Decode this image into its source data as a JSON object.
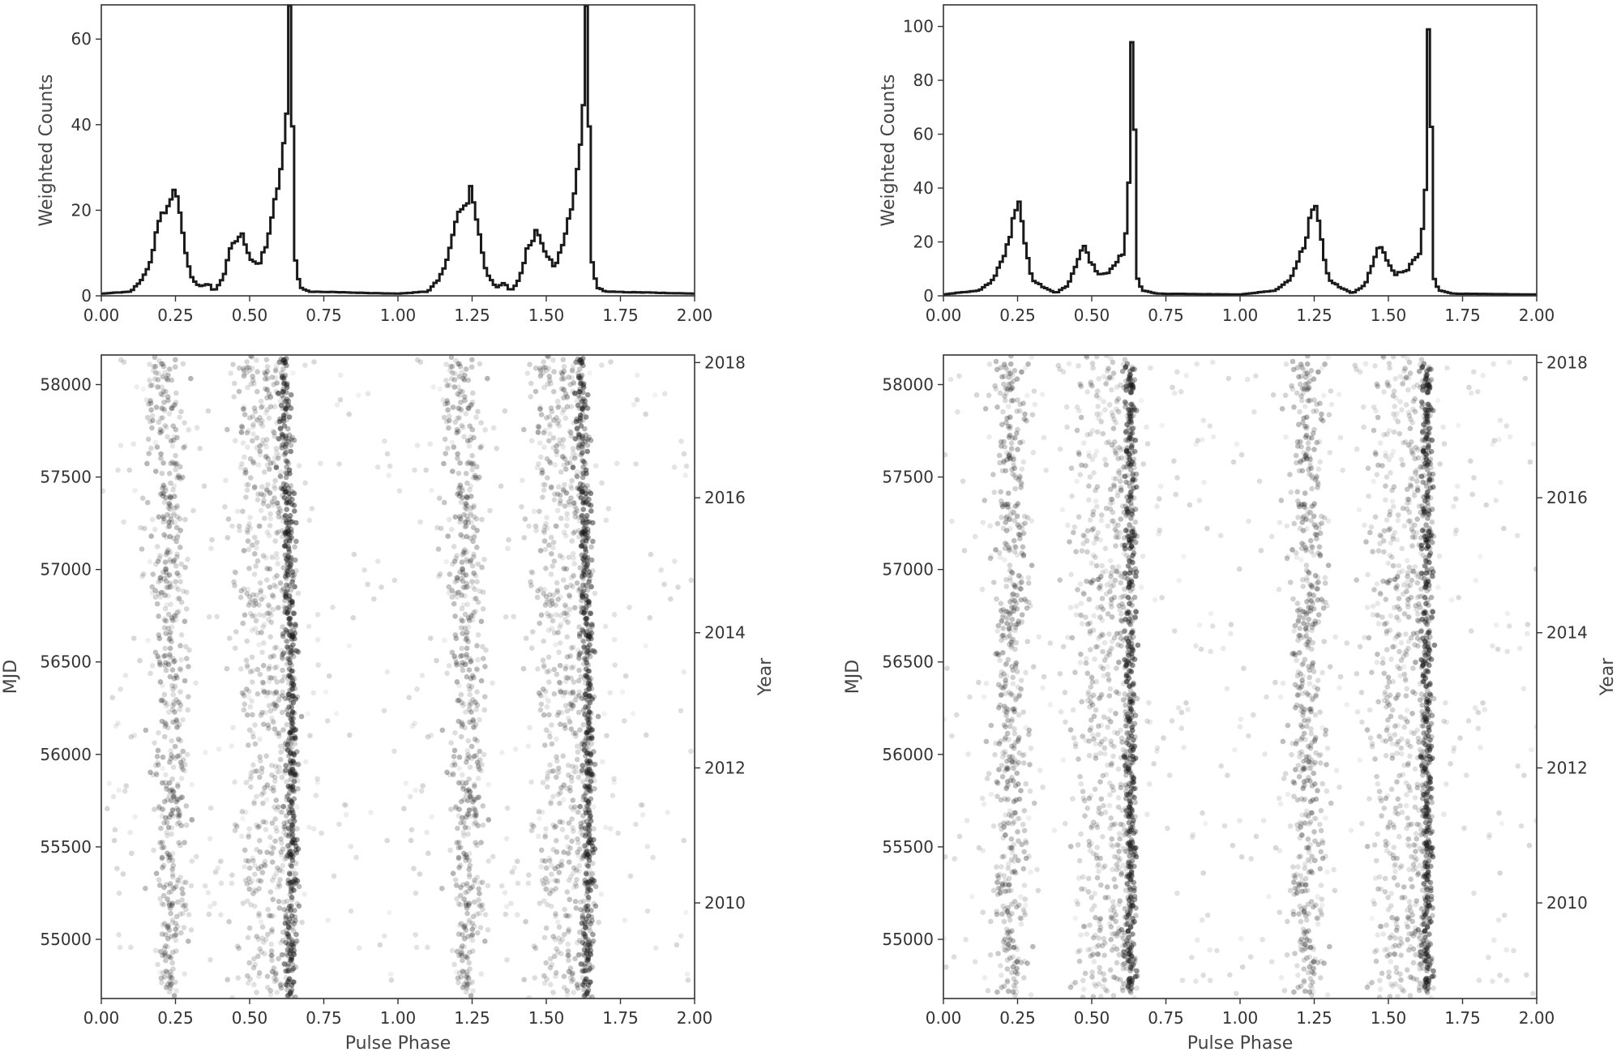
{
  "chart_data": [
    {
      "panel": "left-profile",
      "type": "line",
      "step": true,
      "ylabel": "Weighted Counts",
      "xlabel": "",
      "xlim": [
        0,
        2
      ],
      "ylim": [
        0,
        68
      ],
      "x_ticks": [
        "0.00",
        "0.25",
        "0.50",
        "0.75",
        "1.00",
        "1.25",
        "1.50",
        "1.75",
        "2.00"
      ],
      "y_ticks": [
        0,
        20,
        40,
        60
      ],
      "profile_keypoints": [
        [
          0.0,
          0.5
        ],
        [
          0.1,
          1
        ],
        [
          0.14,
          4
        ],
        [
          0.17,
          9
        ],
        [
          0.19,
          17
        ],
        [
          0.21,
          20
        ],
        [
          0.23,
          21
        ],
        [
          0.245,
          25
        ],
        [
          0.26,
          21
        ],
        [
          0.28,
          12
        ],
        [
          0.3,
          5
        ],
        [
          0.33,
          2
        ],
        [
          0.36,
          3
        ],
        [
          0.38,
          1
        ],
        [
          0.41,
          4
        ],
        [
          0.44,
          12
        ],
        [
          0.47,
          15
        ],
        [
          0.5,
          9
        ],
        [
          0.53,
          7
        ],
        [
          0.56,
          13
        ],
        [
          0.59,
          23
        ],
        [
          0.61,
          32
        ],
        [
          0.625,
          45
        ],
        [
          0.635,
          66
        ],
        [
          0.645,
          40
        ],
        [
          0.655,
          8
        ],
        [
          0.67,
          2
        ],
        [
          0.7,
          1
        ],
        [
          1.0,
          0.5
        ]
      ],
      "line_color": "#1a1a1a"
    },
    {
      "panel": "right-profile",
      "type": "line",
      "step": true,
      "ylabel": "Weighted Counts",
      "xlabel": "",
      "xlim": [
        0,
        2
      ],
      "ylim": [
        0,
        108
      ],
      "x_ticks": [
        "0.00",
        "0.25",
        "0.50",
        "0.75",
        "1.00",
        "1.25",
        "1.50",
        "1.75",
        "2.00"
      ],
      "y_ticks": [
        0,
        20,
        40,
        60,
        80,
        100
      ],
      "profile_keypoints": [
        [
          0.0,
          0.5
        ],
        [
          0.12,
          2
        ],
        [
          0.17,
          6
        ],
        [
          0.2,
          14
        ],
        [
          0.22,
          20
        ],
        [
          0.24,
          30
        ],
        [
          0.25,
          36
        ],
        [
          0.26,
          33
        ],
        [
          0.28,
          16
        ],
        [
          0.3,
          6
        ],
        [
          0.34,
          3
        ],
        [
          0.38,
          1
        ],
        [
          0.42,
          4
        ],
        [
          0.45,
          12
        ],
        [
          0.47,
          19
        ],
        [
          0.49,
          14
        ],
        [
          0.52,
          8
        ],
        [
          0.56,
          9
        ],
        [
          0.59,
          14
        ],
        [
          0.61,
          16
        ],
        [
          0.625,
          40
        ],
        [
          0.635,
          97
        ],
        [
          0.645,
          60
        ],
        [
          0.655,
          6
        ],
        [
          0.67,
          2
        ],
        [
          0.72,
          0.8
        ],
        [
          1.0,
          0.5
        ]
      ],
      "line_color": "#1a1a1a"
    },
    {
      "panel": "left-phaseogram",
      "type": "scatter",
      "xlabel": "Pulse Phase",
      "ylabel": "MJD",
      "y2label": "Year",
      "xlim": [
        0,
        2
      ],
      "ylim": [
        54680,
        58160
      ],
      "x_ticks": [
        "0.00",
        "0.25",
        "0.50",
        "0.75",
        "1.00",
        "1.25",
        "1.50",
        "1.75",
        "2.00"
      ],
      "y_ticks": [
        "55000",
        "55500",
        "56000",
        "56500",
        "57000",
        "57500",
        "58000"
      ],
      "y2_ticks": [
        {
          "label": "2010",
          "mjd": 55197
        },
        {
          "label": "2012",
          "mjd": 55927
        },
        {
          "label": "2014",
          "mjd": 56658
        },
        {
          "label": "2016",
          "mjd": 57388
        },
        {
          "label": "2018",
          "mjd": 58119
        }
      ],
      "drifting": true,
      "point_color": "#1a1a1a"
    },
    {
      "panel": "right-phaseogram",
      "type": "scatter",
      "xlabel": "Pulse Phase",
      "ylabel": "MJD",
      "y2label": "Year",
      "xlim": [
        0,
        2
      ],
      "ylim": [
        54680,
        58160
      ],
      "x_ticks": [
        "0.00",
        "0.25",
        "0.50",
        "0.75",
        "1.00",
        "1.25",
        "1.50",
        "1.75",
        "2.00"
      ],
      "y_ticks": [
        "55000",
        "55500",
        "56000",
        "56500",
        "57000",
        "57500",
        "58000"
      ],
      "y2_ticks": [
        {
          "label": "2010",
          "mjd": 55197
        },
        {
          "label": "2012",
          "mjd": 55927
        },
        {
          "label": "2014",
          "mjd": 56658
        },
        {
          "label": "2016",
          "mjd": 57388
        },
        {
          "label": "2018",
          "mjd": 58119
        }
      ],
      "drifting": false,
      "point_color": "#1a1a1a"
    }
  ]
}
